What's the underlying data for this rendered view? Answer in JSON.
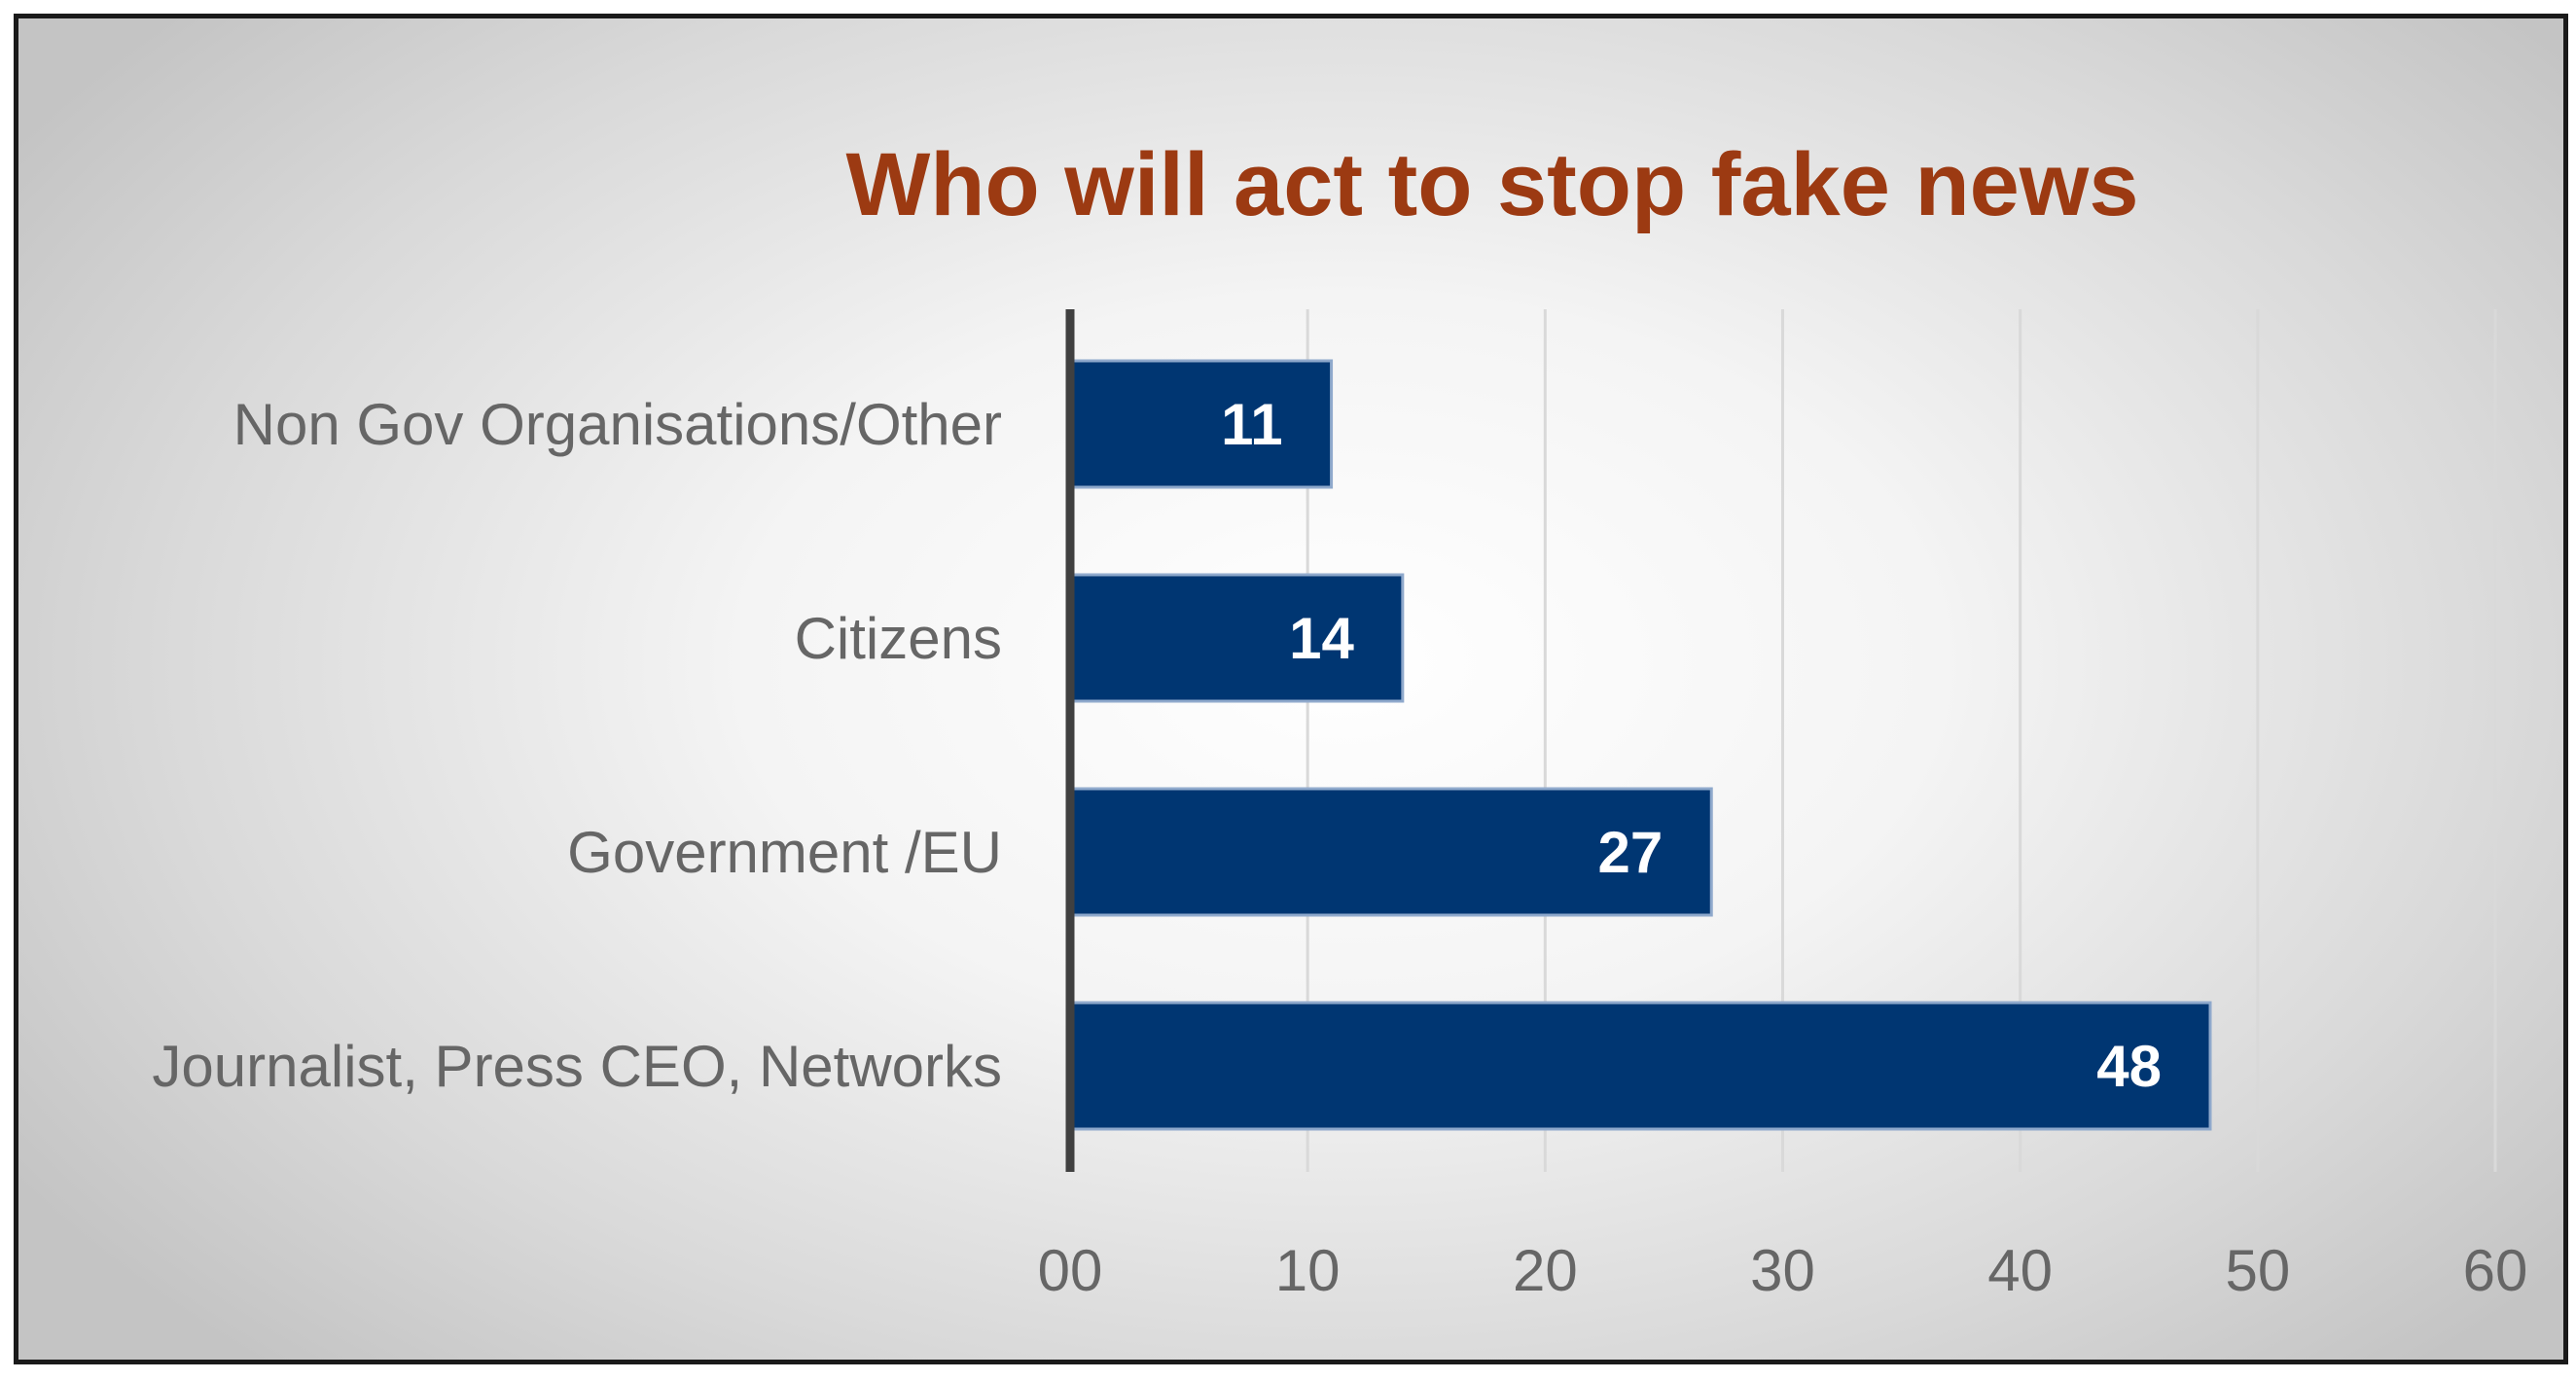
{
  "chart_data": {
    "type": "bar",
    "orientation": "horizontal",
    "title": "Who will act to stop fake news",
    "categories": [
      "Non Gov Organisations/Other",
      "Citizens",
      "Government /EU",
      "Journalist, Press CEO, Networks"
    ],
    "values": [
      11,
      14,
      27,
      48
    ],
    "data_labels": [
      "11",
      "14",
      "27",
      "48"
    ],
    "xlim": [
      0,
      60
    ],
    "x_ticks": [
      0,
      10,
      20,
      30,
      40,
      50,
      60
    ],
    "x_tick_labels": [
      "00",
      "10",
      "20",
      "30",
      "40",
      "50",
      "60"
    ],
    "grid": "vertical",
    "legend": "none",
    "colors": {
      "bar": "#003672",
      "bar_edge": "#8fa9cc",
      "title": "#9c3a12",
      "axis": "#404040",
      "gridline": "#d9d9d9",
      "label_text": "#666666"
    }
  }
}
